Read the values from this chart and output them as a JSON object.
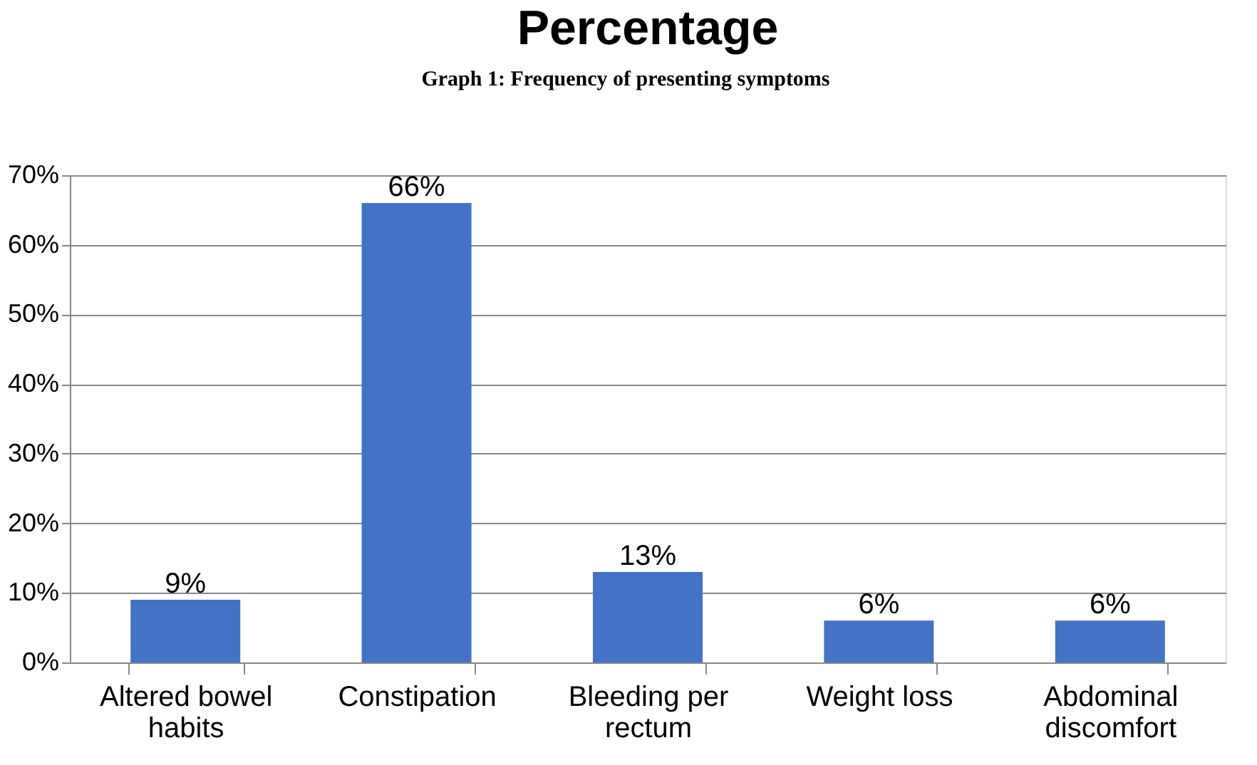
{
  "chart_data": {
    "type": "bar",
    "title": "Percentage",
    "annotations": [
      "Graph 1: Frequency of presenting symptoms"
    ],
    "categories": [
      "Altered bowel habits",
      "Constipation",
      "Bleeding per rectum",
      "Weight loss",
      "Abdominal discomfort"
    ],
    "values": [
      9,
      66,
      13,
      6,
      6
    ],
    "color": "#4472c4",
    "value_labels": [
      "9%",
      "66%",
      "13%",
      "6%",
      "6%"
    ],
    "ylim": [
      0,
      70
    ],
    "yticks": [
      {
        "value": 0,
        "label": "0%"
      },
      {
        "value": 10,
        "label": "10%"
      },
      {
        "value": 20,
        "label": "20%"
      },
      {
        "value": 30,
        "label": "30%"
      },
      {
        "value": 40,
        "label": "40%"
      },
      {
        "value": 50,
        "label": "50%"
      },
      {
        "value": 60,
        "label": "60%"
      },
      {
        "value": 70,
        "label": "70%"
      }
    ],
    "grid": "y"
  }
}
